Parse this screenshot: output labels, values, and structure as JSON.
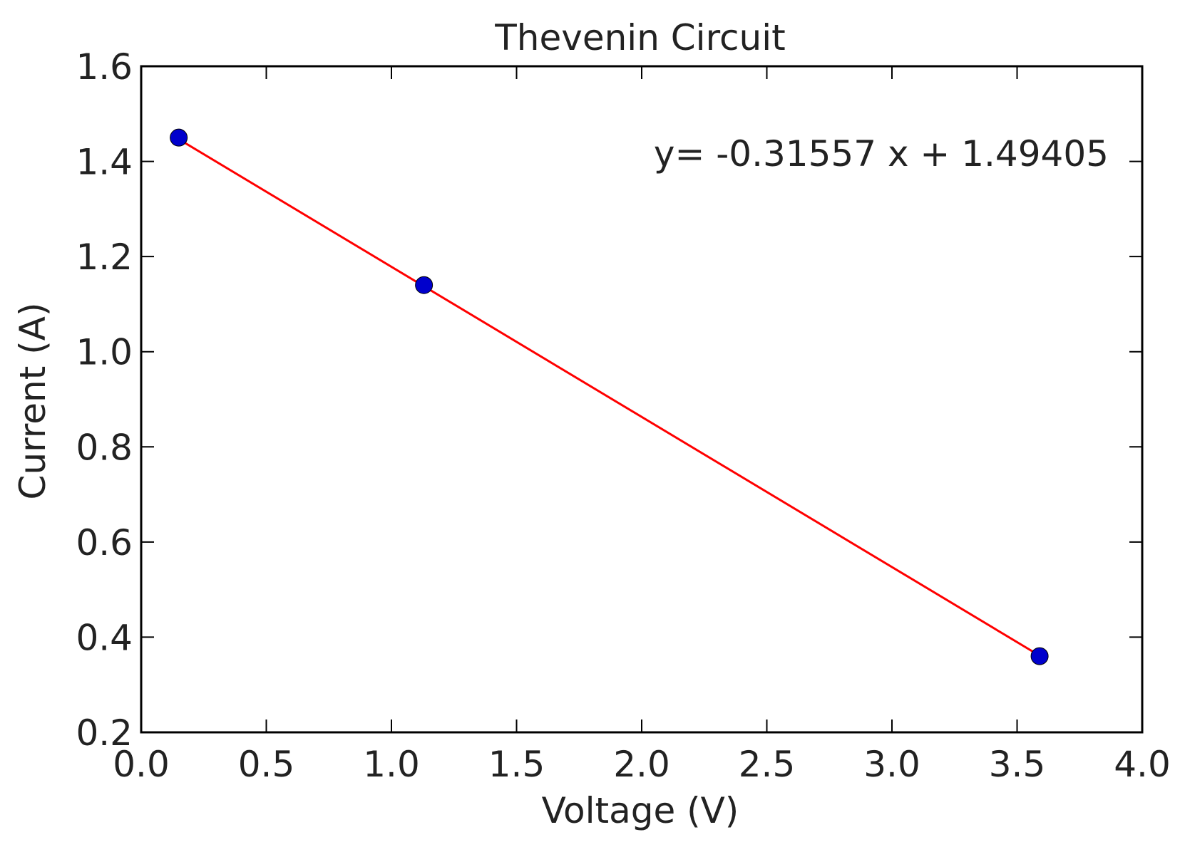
{
  "chart_data": {
    "type": "scatter",
    "title": "Thevenin Circuit",
    "xlabel": "Voltage (V)",
    "ylabel": "Current (A)",
    "xlim": [
      0.0,
      4.0
    ],
    "ylim": [
      0.2,
      1.6
    ],
    "xticks": [
      "0.0",
      "0.5",
      "1.0",
      "1.5",
      "2.0",
      "2.5",
      "3.0",
      "3.5",
      "4.0"
    ],
    "yticks": [
      "0.2",
      "0.4",
      "0.6",
      "0.8",
      "1.0",
      "1.2",
      "1.4",
      "1.6"
    ],
    "grid": false,
    "series": [
      {
        "kind": "points",
        "color": "#0000cc",
        "x": [
          0.15,
          1.13,
          3.59
        ],
        "y": [
          1.45,
          1.14,
          0.36
        ]
      },
      {
        "kind": "fit-line",
        "color": "#ff0000",
        "slope": -0.31557,
        "intercept": 1.49405,
        "x": [
          0.15,
          3.59
        ]
      }
    ],
    "annotation": "y= -0.31557 x + 1.49405"
  }
}
